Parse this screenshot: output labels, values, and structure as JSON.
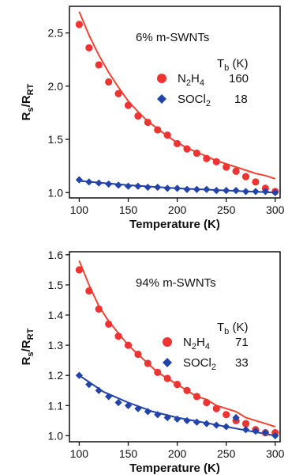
{
  "chart_data": [
    {
      "type": "scatter",
      "annotation": "6% m-SWNTs",
      "legend_title": "T_b (K)",
      "legend_title_main": "T",
      "legend_title_sub": "b",
      "legend_title_rest": " (K)",
      "xlabel": "Temperature (K)",
      "ylabel_main": "R",
      "ylabel_sub1": "s",
      "ylabel_mid": "/R",
      "ylabel_sub2": "RT",
      "xlim": [
        90,
        305
      ],
      "ylim": [
        0.95,
        2.75
      ],
      "xticks": [
        100,
        150,
        200,
        250,
        300
      ],
      "yticks": [
        1.0,
        1.5,
        2.0,
        2.5
      ],
      "ytick_labels": [
        "1.0",
        "1.5",
        "2.0",
        "2.5"
      ],
      "series": [
        {
          "name": "N₂H₄",
          "name_parts": [
            "N",
            "2",
            "H",
            "4"
          ],
          "tb": "160",
          "marker": "circle",
          "color": "#ee3333",
          "x": [
            100,
            110,
            120,
            130,
            140,
            150,
            160,
            170,
            180,
            190,
            200,
            210,
            220,
            230,
            240,
            250,
            260,
            270,
            280,
            290,
            300
          ],
          "y": [
            2.58,
            2.36,
            2.2,
            2.04,
            1.93,
            1.82,
            1.72,
            1.66,
            1.59,
            1.54,
            1.46,
            1.41,
            1.37,
            1.32,
            1.29,
            1.24,
            1.2,
            1.15,
            1.1,
            1.04,
            1.01
          ]
        },
        {
          "name": "SOCl₂",
          "name_parts": [
            "SOCl",
            "2",
            "",
            ""
          ],
          "tb": "18",
          "marker": "diamond",
          "color": "#2244aa",
          "x": [
            100,
            110,
            120,
            130,
            140,
            150,
            160,
            170,
            180,
            190,
            200,
            210,
            220,
            230,
            240,
            250,
            260,
            270,
            280,
            290,
            300
          ],
          "y": [
            1.12,
            1.1,
            1.09,
            1.08,
            1.07,
            1.06,
            1.06,
            1.05,
            1.05,
            1.04,
            1.04,
            1.03,
            1.03,
            1.03,
            1.02,
            1.02,
            1.02,
            1.01,
            1.01,
            1.01,
            1.0
          ]
        }
      ],
      "fit_lines": [
        {
          "color": "#ee4433",
          "x": [
            100,
            110,
            120,
            130,
            140,
            150,
            160,
            170,
            180,
            190,
            200,
            210,
            220,
            230,
            240,
            250,
            260,
            270,
            280,
            290,
            300
          ],
          "y": [
            2.7,
            2.48,
            2.29,
            2.13,
            1.99,
            1.86,
            1.76,
            1.67,
            1.6,
            1.53,
            1.47,
            1.42,
            1.38,
            1.34,
            1.3,
            1.27,
            1.24,
            1.21,
            1.18,
            1.16,
            1.13
          ]
        },
        {
          "color": "#2244aa",
          "x": [
            100,
            150,
            200,
            250,
            300
          ],
          "y": [
            1.11,
            1.07,
            1.04,
            1.02,
            1.0
          ]
        }
      ]
    },
    {
      "type": "scatter",
      "annotation": "94% m-SWNTs",
      "legend_title": "T_b (K)",
      "legend_title_main": "T",
      "legend_title_sub": "b",
      "legend_title_rest": " (K)",
      "xlabel": "Temperature (K)",
      "ylabel_main": "R",
      "ylabel_sub1": "s",
      "ylabel_mid": "/R",
      "ylabel_sub2": "RT",
      "xlim": [
        90,
        305
      ],
      "ylim": [
        0.98,
        1.61
      ],
      "xticks": [
        100,
        150,
        200,
        250,
        300
      ],
      "yticks": [
        1.0,
        1.1,
        1.2,
        1.3,
        1.4,
        1.5,
        1.6
      ],
      "ytick_labels": [
        "1.0",
        "1.1",
        "1.2",
        "1.3",
        "1.4",
        "1.5",
        "1.6"
      ],
      "series": [
        {
          "name": "N₂H₄",
          "name_parts": [
            "N",
            "2",
            "H",
            "4"
          ],
          "tb": "71",
          "marker": "circle",
          "color": "#ee3333",
          "x": [
            100,
            110,
            120,
            130,
            140,
            150,
            160,
            170,
            180,
            190,
            200,
            210,
            220,
            230,
            240,
            250,
            260,
            270,
            280,
            290,
            300
          ],
          "y": [
            1.55,
            1.48,
            1.42,
            1.37,
            1.33,
            1.3,
            1.27,
            1.24,
            1.21,
            1.19,
            1.17,
            1.15,
            1.13,
            1.11,
            1.09,
            1.07,
            1.05,
            1.04,
            1.02,
            1.01,
            1.01
          ]
        },
        {
          "name": "SOCl₂",
          "name_parts": [
            "SOCl",
            "2",
            "",
            ""
          ],
          "tb": "33",
          "marker": "diamond",
          "color": "#2244aa",
          "x": [
            100,
            110,
            120,
            130,
            140,
            150,
            160,
            170,
            180,
            190,
            200,
            210,
            220,
            230,
            240,
            250,
            260,
            270,
            280,
            290,
            300
          ],
          "y": [
            1.2,
            1.17,
            1.15,
            1.13,
            1.11,
            1.1,
            1.09,
            1.08,
            1.07,
            1.06,
            1.055,
            1.05,
            1.045,
            1.04,
            1.035,
            1.03,
            1.06,
            1.02,
            1.015,
            1.01,
            1.0
          ]
        }
      ],
      "fit_lines": [
        {
          "color": "#ee4433",
          "x": [
            100,
            110,
            120,
            130,
            140,
            150,
            160,
            170,
            180,
            190,
            200,
            210,
            220,
            230,
            240,
            250,
            260,
            270,
            280,
            290,
            300
          ],
          "y": [
            1.58,
            1.5,
            1.43,
            1.38,
            1.34,
            1.3,
            1.27,
            1.24,
            1.21,
            1.19,
            1.17,
            1.15,
            1.13,
            1.12,
            1.1,
            1.09,
            1.08,
            1.06,
            1.05,
            1.04,
            1.03
          ]
        },
        {
          "color": "#2244aa",
          "x": [
            100,
            125,
            150,
            175,
            200,
            225,
            250,
            275,
            300
          ],
          "y": [
            1.2,
            1.145,
            1.11,
            1.08,
            1.06,
            1.045,
            1.03,
            1.015,
            1.0
          ]
        }
      ]
    }
  ]
}
